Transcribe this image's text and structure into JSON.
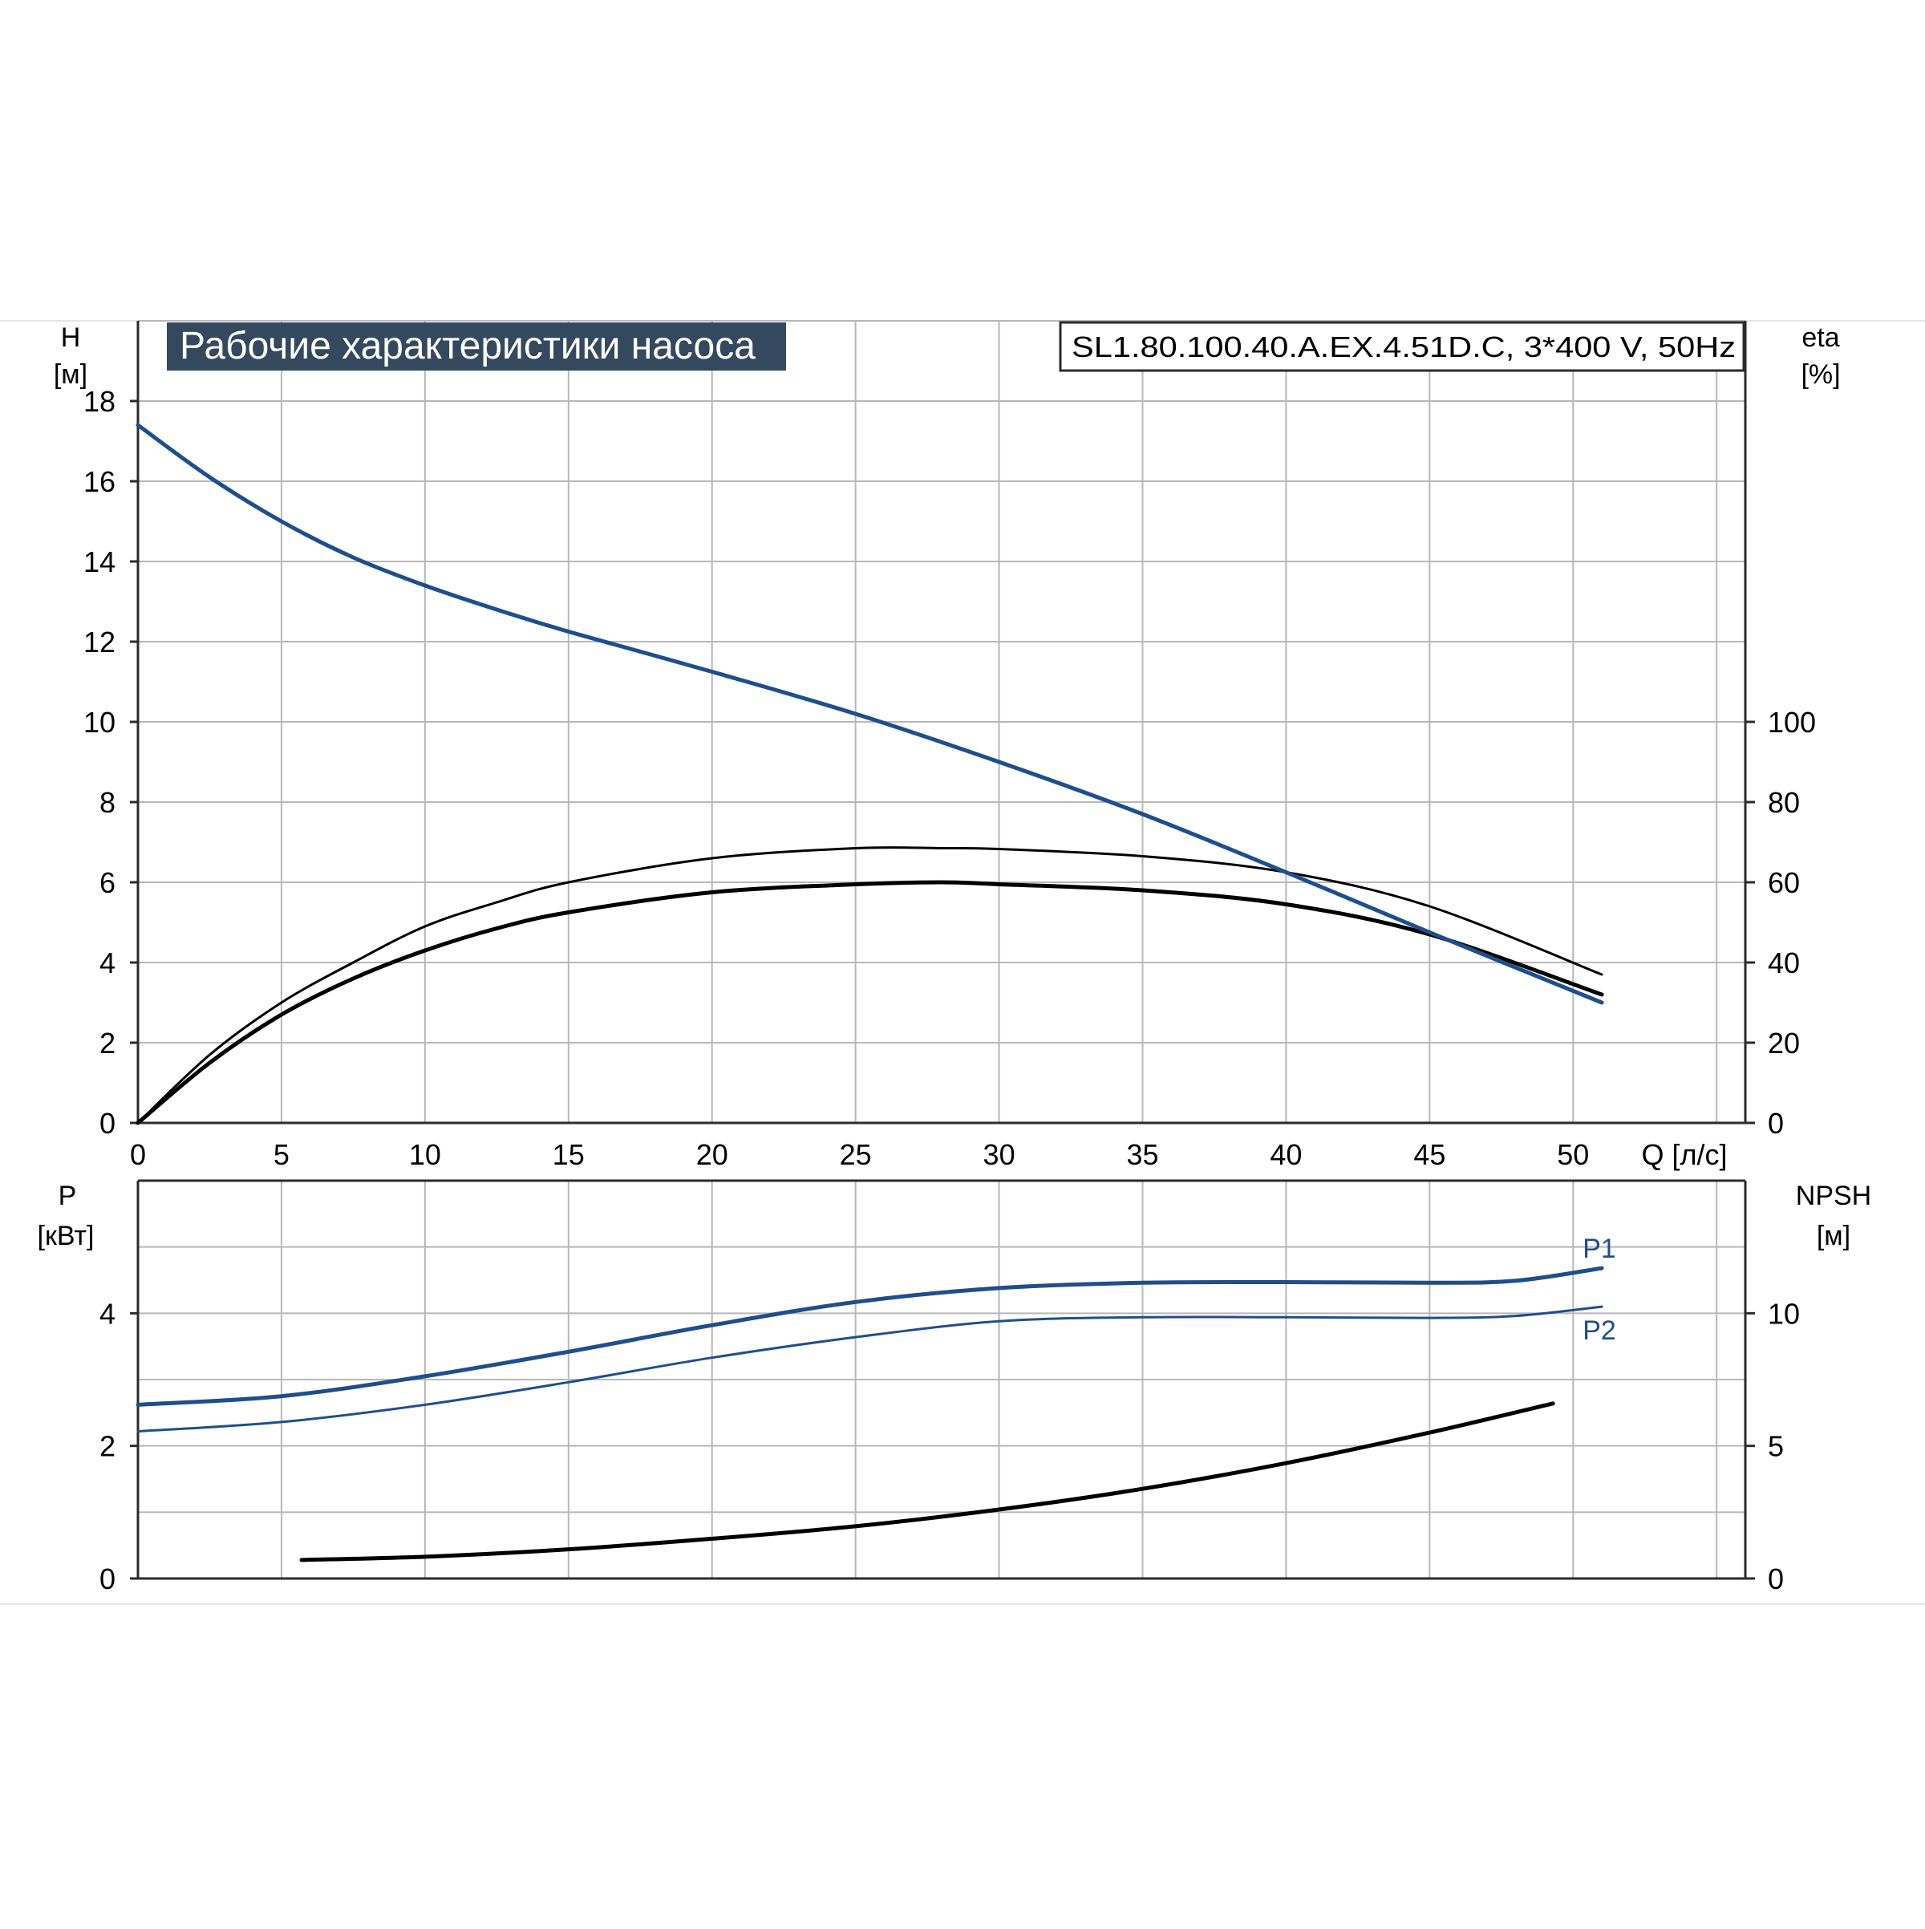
{
  "title": "Рабочие характеристики насоса",
  "model": "SL1.80.100.40.A.EX.4.51D.C, 3*400 V, 50Hz",
  "colors": {
    "title_bg": "#34495e",
    "title_text": "#ffffff",
    "curve_blue": "#1f4e8c",
    "curve_black": "#000000",
    "grid": "#b8b8bc",
    "axis": "#2b2b2b",
    "text": "#000000"
  },
  "chart_data": [
    {
      "type": "line",
      "panel": "upper",
      "x_label": "Q [л/с]",
      "x_ticks": [
        0,
        5,
        10,
        15,
        20,
        25,
        30,
        35,
        40,
        45,
        50
      ],
      "x_range": [
        0,
        56
      ],
      "y_left_label_1": "H",
      "y_left_label_2": "[м]",
      "y_left_ticks": [
        0,
        2,
        4,
        6,
        8,
        10,
        12,
        14,
        16,
        18
      ],
      "y_left_range": [
        0,
        20
      ],
      "y_right_label_1": "eta",
      "y_right_label_2": "[%]",
      "y_right_ticks": [
        0,
        20,
        40,
        60,
        80,
        100
      ],
      "y_right_range": [
        0,
        200
      ],
      "grid": true,
      "series": [
        {
          "key": "head",
          "axis": "left",
          "color": "#1f4e8c",
          "width": 5,
          "points": [
            [
              0,
              17.4
            ],
            [
              2.5,
              16.1
            ],
            [
              5,
              15.0
            ],
            [
              7.5,
              14.1
            ],
            [
              10,
              13.4
            ],
            [
              12.5,
              12.8
            ],
            [
              15,
              12.25
            ],
            [
              20,
              11.25
            ],
            [
              25,
              10.2
            ],
            [
              30,
              9.0
            ],
            [
              35,
              7.7
            ],
            [
              40,
              6.25
            ],
            [
              45,
              4.75
            ],
            [
              51,
              3.0
            ]
          ]
        },
        {
          "key": "eta-thin",
          "axis": "right",
          "color": "#000000",
          "width": 3,
          "points": [
            [
              0,
              0
            ],
            [
              2.5,
              17
            ],
            [
              5,
              30
            ],
            [
              7.5,
              40
            ],
            [
              10,
              49
            ],
            [
              12.5,
              55
            ],
            [
              15,
              60
            ],
            [
              20,
              66
            ],
            [
              25,
              68.5
            ],
            [
              28,
              68.5
            ],
            [
              30,
              68.3
            ],
            [
              35,
              66.5
            ],
            [
              40,
              62.5
            ],
            [
              45,
              54
            ],
            [
              51,
              37
            ]
          ]
        },
        {
          "key": "eta-thick",
          "axis": "right",
          "color": "#000000",
          "width": 5,
          "points": [
            [
              0,
              0
            ],
            [
              2.5,
              15
            ],
            [
              5,
              27
            ],
            [
              7.5,
              36
            ],
            [
              10,
              43
            ],
            [
              12.5,
              48.5
            ],
            [
              15,
              52.5
            ],
            [
              20,
              57.5
            ],
            [
              25,
              59.5
            ],
            [
              28,
              60
            ],
            [
              30,
              59.5
            ],
            [
              35,
              58
            ],
            [
              40,
              54.5
            ],
            [
              45,
              47
            ],
            [
              51,
              32
            ]
          ]
        }
      ]
    },
    {
      "type": "line",
      "panel": "lower",
      "x_range": [
        0,
        56
      ],
      "y_left_label_1": "P",
      "y_left_label_2": "[кВт]",
      "y_left_ticks": [
        0,
        2,
        4
      ],
      "y_left_range": [
        0,
        6
      ],
      "y_right_label_1": "NPSH",
      "y_right_label_2": "[м]",
      "y_right_ticks": [
        0,
        5,
        10
      ],
      "y_right_range": [
        0,
        15
      ],
      "grid": true,
      "series": [
        {
          "key": "P1",
          "name": "P1",
          "axis": "left",
          "color": "#1f4e8c",
          "width": 5,
          "points": [
            [
              0,
              2.62
            ],
            [
              5,
              2.75
            ],
            [
              10,
              3.05
            ],
            [
              15,
              3.42
            ],
            [
              20,
              3.82
            ],
            [
              25,
              4.17
            ],
            [
              30,
              4.38
            ],
            [
              35,
              4.46
            ],
            [
              40,
              4.47
            ],
            [
              45,
              4.46
            ],
            [
              48,
              4.49
            ],
            [
              51,
              4.68
            ]
          ]
        },
        {
          "key": "P2",
          "name": "P2",
          "axis": "left",
          "color": "#1f4e8c",
          "width": 3,
          "points": [
            [
              0,
              2.22
            ],
            [
              5,
              2.36
            ],
            [
              10,
              2.62
            ],
            [
              15,
              2.96
            ],
            [
              20,
              3.33
            ],
            [
              25,
              3.64
            ],
            [
              30,
              3.88
            ],
            [
              35,
              3.94
            ],
            [
              40,
              3.94
            ],
            [
              45,
              3.93
            ],
            [
              48,
              3.96
            ],
            [
              51,
              4.1
            ]
          ]
        },
        {
          "key": "npsh",
          "axis": "right",
          "color": "#000000",
          "width": 5,
          "points": [
            [
              5.7,
              0.7
            ],
            [
              10,
              0.82
            ],
            [
              15,
              1.1
            ],
            [
              20,
              1.5
            ],
            [
              25,
              1.97
            ],
            [
              30,
              2.6
            ],
            [
              35,
              3.38
            ],
            [
              40,
              4.35
            ],
            [
              45,
              5.5
            ],
            [
              49.3,
              6.6
            ]
          ]
        }
      ]
    }
  ]
}
